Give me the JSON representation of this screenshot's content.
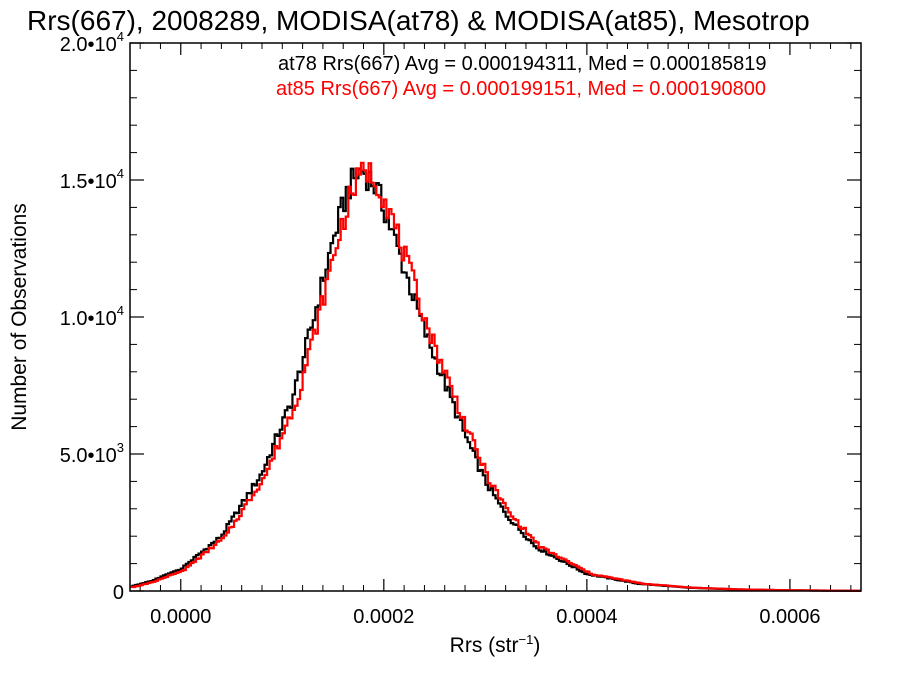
{
  "chart_data": {
    "type": "histogram",
    "title": "Rrs(667), 2008289, MODISA(at78) & MODISA(at85), Mesotrop",
    "xlabel": "Rrs (str",
    "xlabel_sup": "−1",
    "xlabel_end": ")",
    "ylabel": "Number of Observations",
    "xlim": [
      -5e-05,
      0.00067
    ],
    "ylim": [
      0,
      20000
    ],
    "x_ticks": [
      {
        "value": 0.0,
        "label": "0.0000"
      },
      {
        "value": 0.0002,
        "label": "0.0002"
      },
      {
        "value": 0.0004,
        "label": "0.0004"
      },
      {
        "value": 0.0006,
        "label": "0.0006"
      }
    ],
    "y_ticks": [
      {
        "value": 0,
        "mant": "0",
        "exp": ""
      },
      {
        "value": 5000,
        "mant": "5.0•10",
        "exp": "3"
      },
      {
        "value": 10000,
        "mant": "1.0•10",
        "exp": "4"
      },
      {
        "value": 15000,
        "mant": "1.5•10",
        "exp": "4"
      },
      {
        "value": 20000,
        "mant": "2.0•10",
        "exp": "4"
      }
    ],
    "series": [
      {
        "name": "at78",
        "color": "#000000",
        "stats": "at78 Rrs(667) Avg = 0.000194311, Med = 0.000185819"
      },
      {
        "name": "at85",
        "color": "#ff0000",
        "stats": "at85 Rrs(667) Avg = 0.000199151, Med = 0.000190800"
      }
    ],
    "profile_points": [
      [
        -5e-05,
        150
      ],
      [
        -3e-05,
        350
      ],
      [
        0.0,
        800
      ],
      [
        4e-05,
        2000
      ],
      [
        8e-05,
        4300
      ],
      [
        0.00011,
        7000
      ],
      [
        0.00013,
        9800
      ],
      [
        0.00015,
        12800
      ],
      [
        0.000165,
        14700
      ],
      [
        0.000178,
        15400
      ],
      [
        0.00019,
        14900
      ],
      [
        0.0002,
        14000
      ],
      [
        0.00022,
        11800
      ],
      [
        0.00024,
        9500
      ],
      [
        0.00026,
        7600
      ],
      [
        0.00028,
        5700
      ],
      [
        0.0003,
        4000
      ],
      [
        0.00032,
        2800
      ],
      [
        0.00035,
        1600
      ],
      [
        0.0004,
        620
      ],
      [
        0.00045,
        270
      ],
      [
        0.0005,
        120
      ],
      [
        0.00055,
        55
      ],
      [
        0.0006,
        25
      ],
      [
        0.00067,
        5
      ]
    ]
  }
}
